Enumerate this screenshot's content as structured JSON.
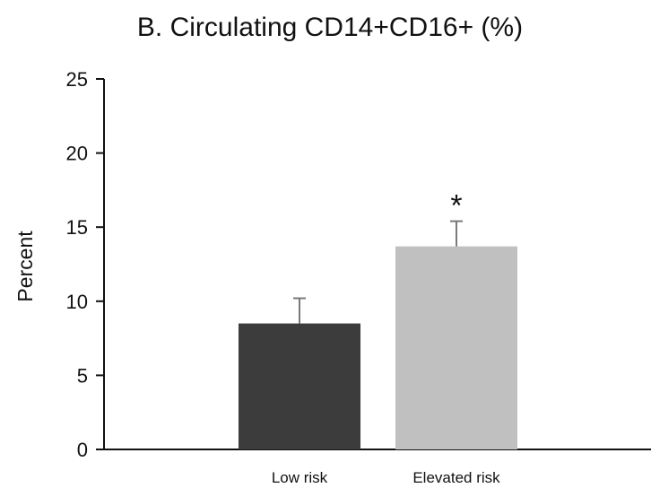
{
  "chart_data": {
    "type": "bar",
    "title": "B. Circulating CD14+CD16+ (%)",
    "ylabel": "Percent",
    "xlabel": "",
    "ylim": [
      0,
      25
    ],
    "yticks": [
      0,
      5,
      10,
      15,
      20,
      25
    ],
    "categories": [
      "Low risk",
      "Elevated risk"
    ],
    "values": [
      8.5,
      13.7
    ],
    "errors": [
      1.7,
      1.7
    ],
    "bar_colors": [
      "#3c3c3c",
      "#c0c0c0"
    ],
    "error_bar_color": "#7a7a7a",
    "annotations": [
      {
        "category_index": 1,
        "text": "*"
      }
    ],
    "grid": false,
    "legend": "none"
  }
}
